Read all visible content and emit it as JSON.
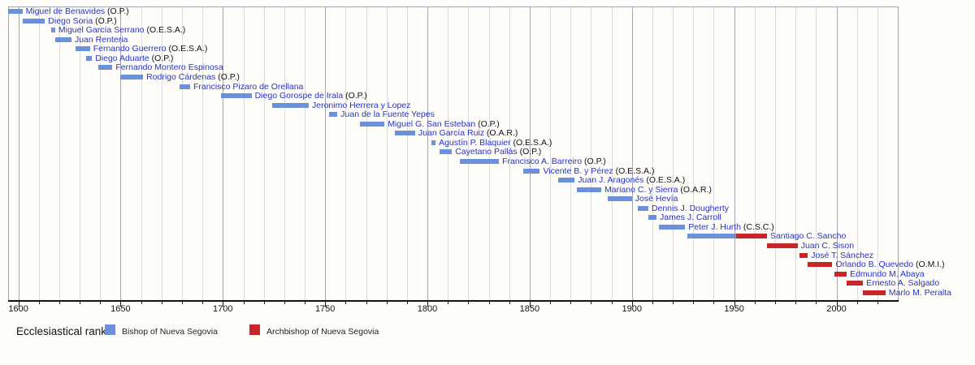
{
  "chart_data": {
    "type": "bar",
    "variant": "timeline-gantt",
    "title": "",
    "xlabel": "",
    "ylabel": "",
    "x_axis": {
      "min": 1595,
      "max": 2030,
      "label_ticks": [
        1600,
        1650,
        1700,
        1750,
        1800,
        1850,
        1900,
        1950,
        2000
      ],
      "grid_interval_years": 10,
      "grid": true
    },
    "legend": {
      "title": "Ecclesiastical rank",
      "position": "bottom",
      "items": [
        {
          "label": "Bishop of Nueva Segovia",
          "rank": "bishop",
          "color": "#6b91dd"
        },
        {
          "label": "Archbishop of Nueva Segovia",
          "rank": "archbishop",
          "color": "#c7262b"
        }
      ]
    },
    "colors": {
      "bishop": "#6b91dd",
      "archbishop": "#c7262b",
      "link_text": "#2433cb",
      "suffix_text": "#111111",
      "grid_minor": "#dadae2",
      "grid_major": "#a6a6af",
      "axis": "#111111",
      "background": "#fffefa"
    },
    "people": [
      {
        "name": "Miguel de Benavides",
        "suffix": "(O.P.)",
        "terms": [
          {
            "start": 1595,
            "end": 1602,
            "rank": "bishop"
          }
        ]
      },
      {
        "name": "Diego Soria",
        "suffix": "(O.P.)",
        "terms": [
          {
            "start": 1602,
            "end": 1613,
            "rank": "bishop"
          }
        ]
      },
      {
        "name": "Miguel García Serrano",
        "suffix": "(O.E.S.A.)",
        "terms": [
          {
            "start": 1616,
            "end": 1618,
            "rank": "bishop"
          }
        ]
      },
      {
        "name": "Juan Renteria",
        "suffix": "",
        "terms": [
          {
            "start": 1618,
            "end": 1626,
            "rank": "bishop"
          }
        ]
      },
      {
        "name": "Fernando Guerrero",
        "suffix": "(O.E.S.A.)",
        "terms": [
          {
            "start": 1628,
            "end": 1635,
            "rank": "bishop"
          }
        ]
      },
      {
        "name": "Diego Aduarte",
        "suffix": "(O.P.)",
        "terms": [
          {
            "start": 1633,
            "end": 1636,
            "rank": "bishop"
          }
        ]
      },
      {
        "name": "Fernando Montero Espinosa",
        "suffix": "",
        "terms": [
          {
            "start": 1639,
            "end": 1646,
            "rank": "bishop"
          }
        ]
      },
      {
        "name": "Rodrigo Cárdenas",
        "suffix": "(O.P.)",
        "terms": [
          {
            "start": 1650,
            "end": 1661,
            "rank": "bishop"
          }
        ]
      },
      {
        "name": "Francisco Pizaro de Orellana",
        "suffix": "",
        "terms": [
          {
            "start": 1679,
            "end": 1684,
            "rank": "bishop"
          }
        ]
      },
      {
        "name": "Diego Gorospe de Irala",
        "suffix": "(O.P.)",
        "terms": [
          {
            "start": 1699,
            "end": 1714,
            "rank": "bishop"
          }
        ]
      },
      {
        "name": "Jeronimo Herrera y Lopez",
        "suffix": "",
        "terms": [
          {
            "start": 1724,
            "end": 1742,
            "rank": "bishop"
          }
        ]
      },
      {
        "name": "Juan de la Fuente Yepes",
        "suffix": "",
        "terms": [
          {
            "start": 1752,
            "end": 1756,
            "rank": "bishop"
          }
        ]
      },
      {
        "name": "Miguel G. San Esteban",
        "suffix": "(O.P.)",
        "terms": [
          {
            "start": 1767,
            "end": 1779,
            "rank": "bishop"
          }
        ]
      },
      {
        "name": "Juan García Ruiz",
        "suffix": "(O.A.R.)",
        "terms": [
          {
            "start": 1784,
            "end": 1794,
            "rank": "bishop"
          }
        ]
      },
      {
        "name": "Agustín P. Blaquier",
        "suffix": "(O.E.S.A.)",
        "terms": [
          {
            "start": 1802,
            "end": 1804,
            "rank": "bishop"
          }
        ]
      },
      {
        "name": "Cayetano Pallás",
        "suffix": "(O.P.)",
        "terms": [
          {
            "start": 1806,
            "end": 1812,
            "rank": "bishop"
          }
        ]
      },
      {
        "name": "Francisco A. Barreiro",
        "suffix": "(O.P.)",
        "terms": [
          {
            "start": 1816,
            "end": 1835,
            "rank": "bishop"
          }
        ]
      },
      {
        "name": "Vicente B. y Pérez",
        "suffix": "(O.E.S.A.)",
        "terms": [
          {
            "start": 1847,
            "end": 1855,
            "rank": "bishop"
          }
        ]
      },
      {
        "name": "Juan J. Aragonés",
        "suffix": "(O.E.S.A.)",
        "terms": [
          {
            "start": 1864,
            "end": 1872,
            "rank": "bishop"
          }
        ]
      },
      {
        "name": "Mariano C. y Sierra",
        "suffix": "(O.A.R.)",
        "terms": [
          {
            "start": 1873,
            "end": 1885,
            "rank": "bishop"
          }
        ]
      },
      {
        "name": "José Hevía",
        "suffix": "",
        "terms": [
          {
            "start": 1888,
            "end": 1900,
            "rank": "bishop"
          }
        ]
      },
      {
        "name": "Dennis J. Dougherty",
        "suffix": "",
        "terms": [
          {
            "start": 1903,
            "end": 1908,
            "rank": "bishop"
          }
        ]
      },
      {
        "name": "James J. Carroll",
        "suffix": "",
        "terms": [
          {
            "start": 1908,
            "end": 1912,
            "rank": "bishop"
          }
        ]
      },
      {
        "name": "Peter J. Hurth",
        "suffix": "(C.S.C.)",
        "terms": [
          {
            "start": 1913,
            "end": 1926,
            "rank": "bishop"
          }
        ]
      },
      {
        "name": "Santiago C. Sancho",
        "suffix": "",
        "terms": [
          {
            "start": 1927,
            "end": 1951,
            "rank": "bishop"
          },
          {
            "start": 1951,
            "end": 1966,
            "rank": "archbishop"
          }
        ]
      },
      {
        "name": "Juan C. Sison",
        "suffix": "",
        "terms": [
          {
            "start": 1966,
            "end": 1981,
            "rank": "archbishop"
          }
        ]
      },
      {
        "name": "José T. Sánchez",
        "suffix": "",
        "terms": [
          {
            "start": 1982,
            "end": 1986,
            "rank": "archbishop"
          }
        ]
      },
      {
        "name": "Orlando B. Quevedo",
        "suffix": "(O.M.I.)",
        "terms": [
          {
            "start": 1986,
            "end": 1998,
            "rank": "archbishop"
          }
        ]
      },
      {
        "name": "Edmundo M. Abaya",
        "suffix": "",
        "terms": [
          {
            "start": 1999,
            "end": 2005,
            "rank": "archbishop"
          }
        ]
      },
      {
        "name": "Ernesto A. Salgado",
        "suffix": "",
        "terms": [
          {
            "start": 2005,
            "end": 2013,
            "rank": "archbishop"
          }
        ]
      },
      {
        "name": "Marlo M. Peralta",
        "suffix": "",
        "terms": [
          {
            "start": 2013,
            "end": 2024,
            "rank": "archbishop"
          }
        ]
      }
    ]
  }
}
